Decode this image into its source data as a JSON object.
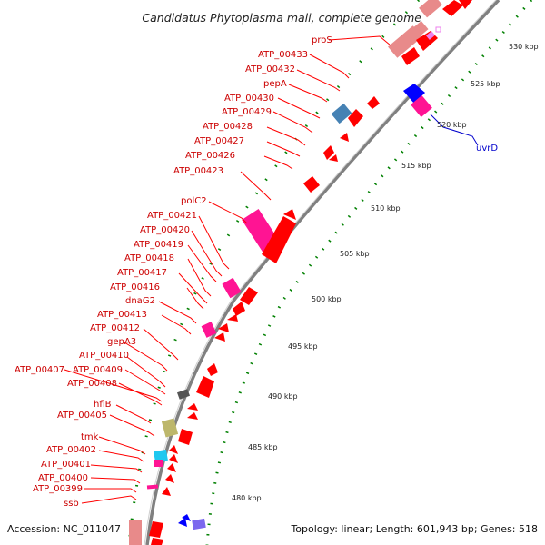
{
  "title": "Candidatus Phytoplasma mali, complete genome",
  "footer": {
    "accession": "Accession: NC_011047",
    "summary": "Topology: linear; Length: 601,943 bp; Genes: 518"
  },
  "colors": {
    "background": "#ffffff",
    "backbone": "#808080",
    "tick": "#008000",
    "cds": "#ff0000",
    "rna": "#ff1493",
    "pink_light": "#e88a8a",
    "steel_blue": "#4682b4",
    "khaki": "#bdb76b",
    "cyan": "#1ec8f0",
    "blue": "#0000ff",
    "dark_gray": "#555555",
    "violet": "#ee82ee",
    "slate_blue": "#7b68ee",
    "label_red": "#cc0000",
    "label_blue": "#0000cc"
  },
  "kbp_labels": [
    "530 kbp",
    "525 kbp",
    "520 kbp",
    "515 kbp",
    "510 kbp",
    "505 kbp",
    "500 kbp",
    "495 kbp",
    "490 kbp",
    "485 kbp",
    "480 kbp"
  ],
  "gene_labels": [
    {
      "text": "proS",
      "color": "red"
    },
    {
      "text": "ATP_00433",
      "color": "red"
    },
    {
      "text": "ATP_00432",
      "color": "red"
    },
    {
      "text": "pepA",
      "color": "red"
    },
    {
      "text": "ATP_00430",
      "color": "red"
    },
    {
      "text": "ATP_00429",
      "color": "red"
    },
    {
      "text": "ATP_00428",
      "color": "red"
    },
    {
      "text": "ATP_00427",
      "color": "red"
    },
    {
      "text": "ATP_00426",
      "color": "red"
    },
    {
      "text": "ATP_00423",
      "color": "red"
    },
    {
      "text": "polC2",
      "color": "red"
    },
    {
      "text": "ATP_00421",
      "color": "red"
    },
    {
      "text": "ATP_00420",
      "color": "red"
    },
    {
      "text": "ATP_00419",
      "color": "red"
    },
    {
      "text": "ATP_00418",
      "color": "red"
    },
    {
      "text": "ATP_00417",
      "color": "red"
    },
    {
      "text": "ATP_00416",
      "color": "red"
    },
    {
      "text": "dnaG2",
      "color": "red"
    },
    {
      "text": "ATP_00413",
      "color": "red"
    },
    {
      "text": "ATP_00412",
      "color": "red"
    },
    {
      "text": "gepA3",
      "color": "red"
    },
    {
      "text": "ATP_00410",
      "color": "red"
    },
    {
      "text": "ATP_00407",
      "color": "red"
    },
    {
      "text": "ATP_00409",
      "color": "red"
    },
    {
      "text": "ATP_00408",
      "color": "red"
    },
    {
      "text": "hflB",
      "color": "red"
    },
    {
      "text": "ATP_00405",
      "color": "red"
    },
    {
      "text": "tmk",
      "color": "red"
    },
    {
      "text": "ATP_00402",
      "color": "red"
    },
    {
      "text": "ATP_00401",
      "color": "red"
    },
    {
      "text": "ATP_00400",
      "color": "red"
    },
    {
      "text": "ATP_00399",
      "color": "red"
    },
    {
      "text": "ssb",
      "color": "red"
    },
    {
      "text": "uvrD",
      "color": "blue"
    }
  ]
}
